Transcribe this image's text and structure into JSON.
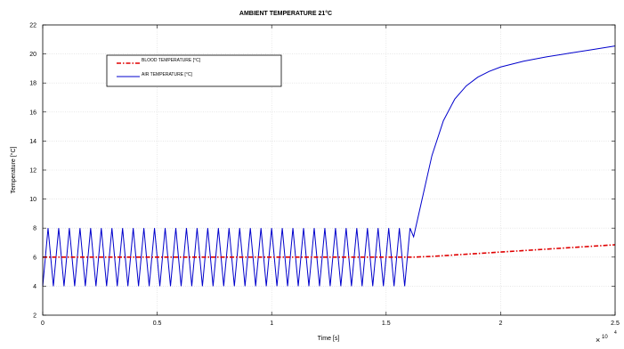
{
  "chart_data": {
    "type": "line",
    "title": "AMBIENT TEMPERATURE 21°C",
    "xlabel": "Time [s]",
    "ylabel": "Temperature [°C]",
    "x_multiplier_label": "10",
    "x_multiplier_exponent": "4",
    "xlim": [
      0,
      2.5
    ],
    "ylim": [
      2,
      22
    ],
    "x_ticks": [
      0,
      0.5,
      1,
      1.5,
      2,
      2.5
    ],
    "x_tick_labels": [
      "0",
      "0.5",
      "1",
      "1.5",
      "2",
      "2.5"
    ],
    "y_ticks": [
      2,
      4,
      6,
      8,
      10,
      12,
      14,
      16,
      18,
      20,
      22
    ],
    "y_tick_labels": [
      "2",
      "4",
      "6",
      "8",
      "10",
      "12",
      "14",
      "16",
      "18",
      "20",
      "22"
    ],
    "grid": true,
    "legend_position": "upper-left",
    "series": [
      {
        "name": "BLOOD TEMPERATURE [°C]",
        "color": "#e00000",
        "style": "dash-dot",
        "x": [
          0,
          0.5,
          1.0,
          1.5,
          1.62,
          1.7,
          1.8,
          1.9,
          2.0,
          2.1,
          2.2,
          2.3,
          2.4,
          2.5
        ],
        "y": [
          6.0,
          6.0,
          6.0,
          6.0,
          6.0,
          6.05,
          6.15,
          6.25,
          6.35,
          6.45,
          6.55,
          6.65,
          6.75,
          6.85
        ]
      },
      {
        "name": "AIR TEMPERATURE [°C]",
        "color": "#0000cc",
        "style": "solid",
        "oscillation": {
          "x_start": 0,
          "x_end": 1.62,
          "period": 0.0465,
          "min": 4.0,
          "max": 8.0
        },
        "x": [
          1.62,
          1.65,
          1.7,
          1.75,
          1.8,
          1.85,
          1.9,
          1.95,
          2.0,
          2.1,
          2.2,
          2.3,
          2.4,
          2.5
        ],
        "y": [
          7.4,
          9.5,
          13.0,
          15.4,
          16.9,
          17.8,
          18.4,
          18.8,
          19.1,
          19.5,
          19.8,
          20.05,
          20.3,
          20.55
        ]
      }
    ]
  }
}
